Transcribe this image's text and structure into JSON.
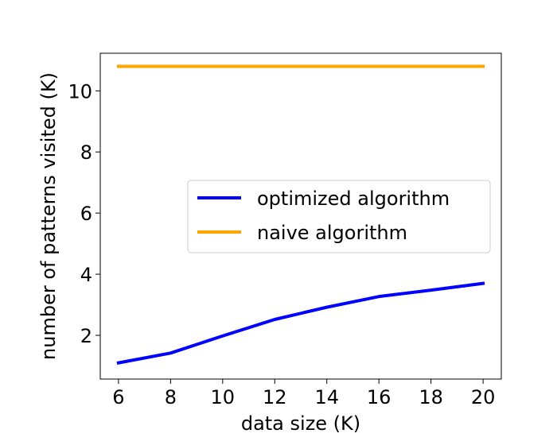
{
  "chart_data": {
    "type": "line",
    "title": "",
    "xlabel": "data size (K)",
    "ylabel": "number of patterns visited (K)",
    "x": [
      6,
      8,
      10,
      12,
      14,
      16,
      18,
      20
    ],
    "xlim": [
      5.3,
      20.7
    ],
    "ylim": [
      0.57,
      11.23
    ],
    "xticks": [
      6,
      8,
      10,
      12,
      14,
      16,
      18,
      20
    ],
    "yticks": [
      2,
      4,
      6,
      8,
      10
    ],
    "grid": false,
    "legend_position": "center-right",
    "series": [
      {
        "name": "optimized algorithm",
        "color": "#0000ff",
        "values": [
          1.1,
          1.42,
          1.98,
          2.52,
          2.92,
          3.27,
          3.48,
          3.7
        ]
      },
      {
        "name": "naive algorithm",
        "color": "#ffa500",
        "values": [
          10.8,
          10.8,
          10.8,
          10.8,
          10.8,
          10.8,
          10.8,
          10.8
        ]
      }
    ]
  }
}
